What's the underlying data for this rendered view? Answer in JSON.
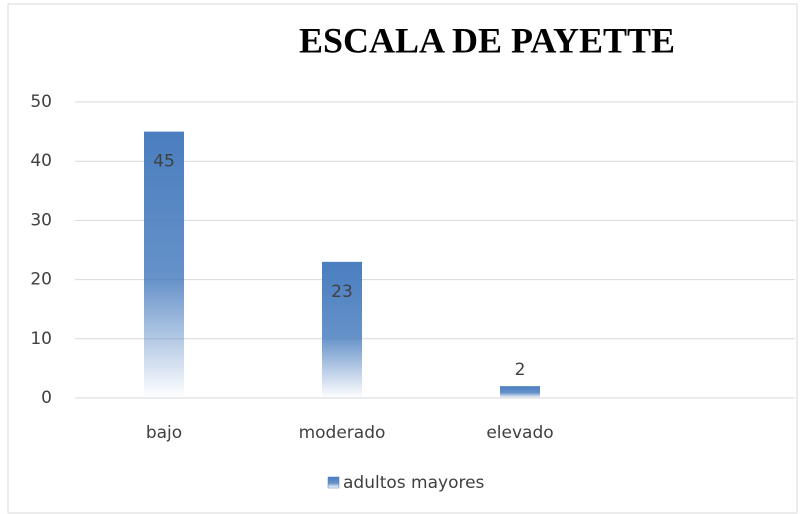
{
  "chart_data": {
    "type": "bar",
    "title": "ESCALA DE PAYETTE",
    "categories": [
      "bajo",
      "moderado",
      "elevado",
      null
    ],
    "series": [
      {
        "name": "adultos mayores",
        "color": "#4a7ebf",
        "values": [
          45,
          23,
          2,
          null
        ]
      }
    ],
    "ylim": [
      0,
      50
    ],
    "yticks": [
      0,
      10,
      20,
      30,
      40,
      50
    ],
    "grid": true,
    "legend": "bottom"
  }
}
